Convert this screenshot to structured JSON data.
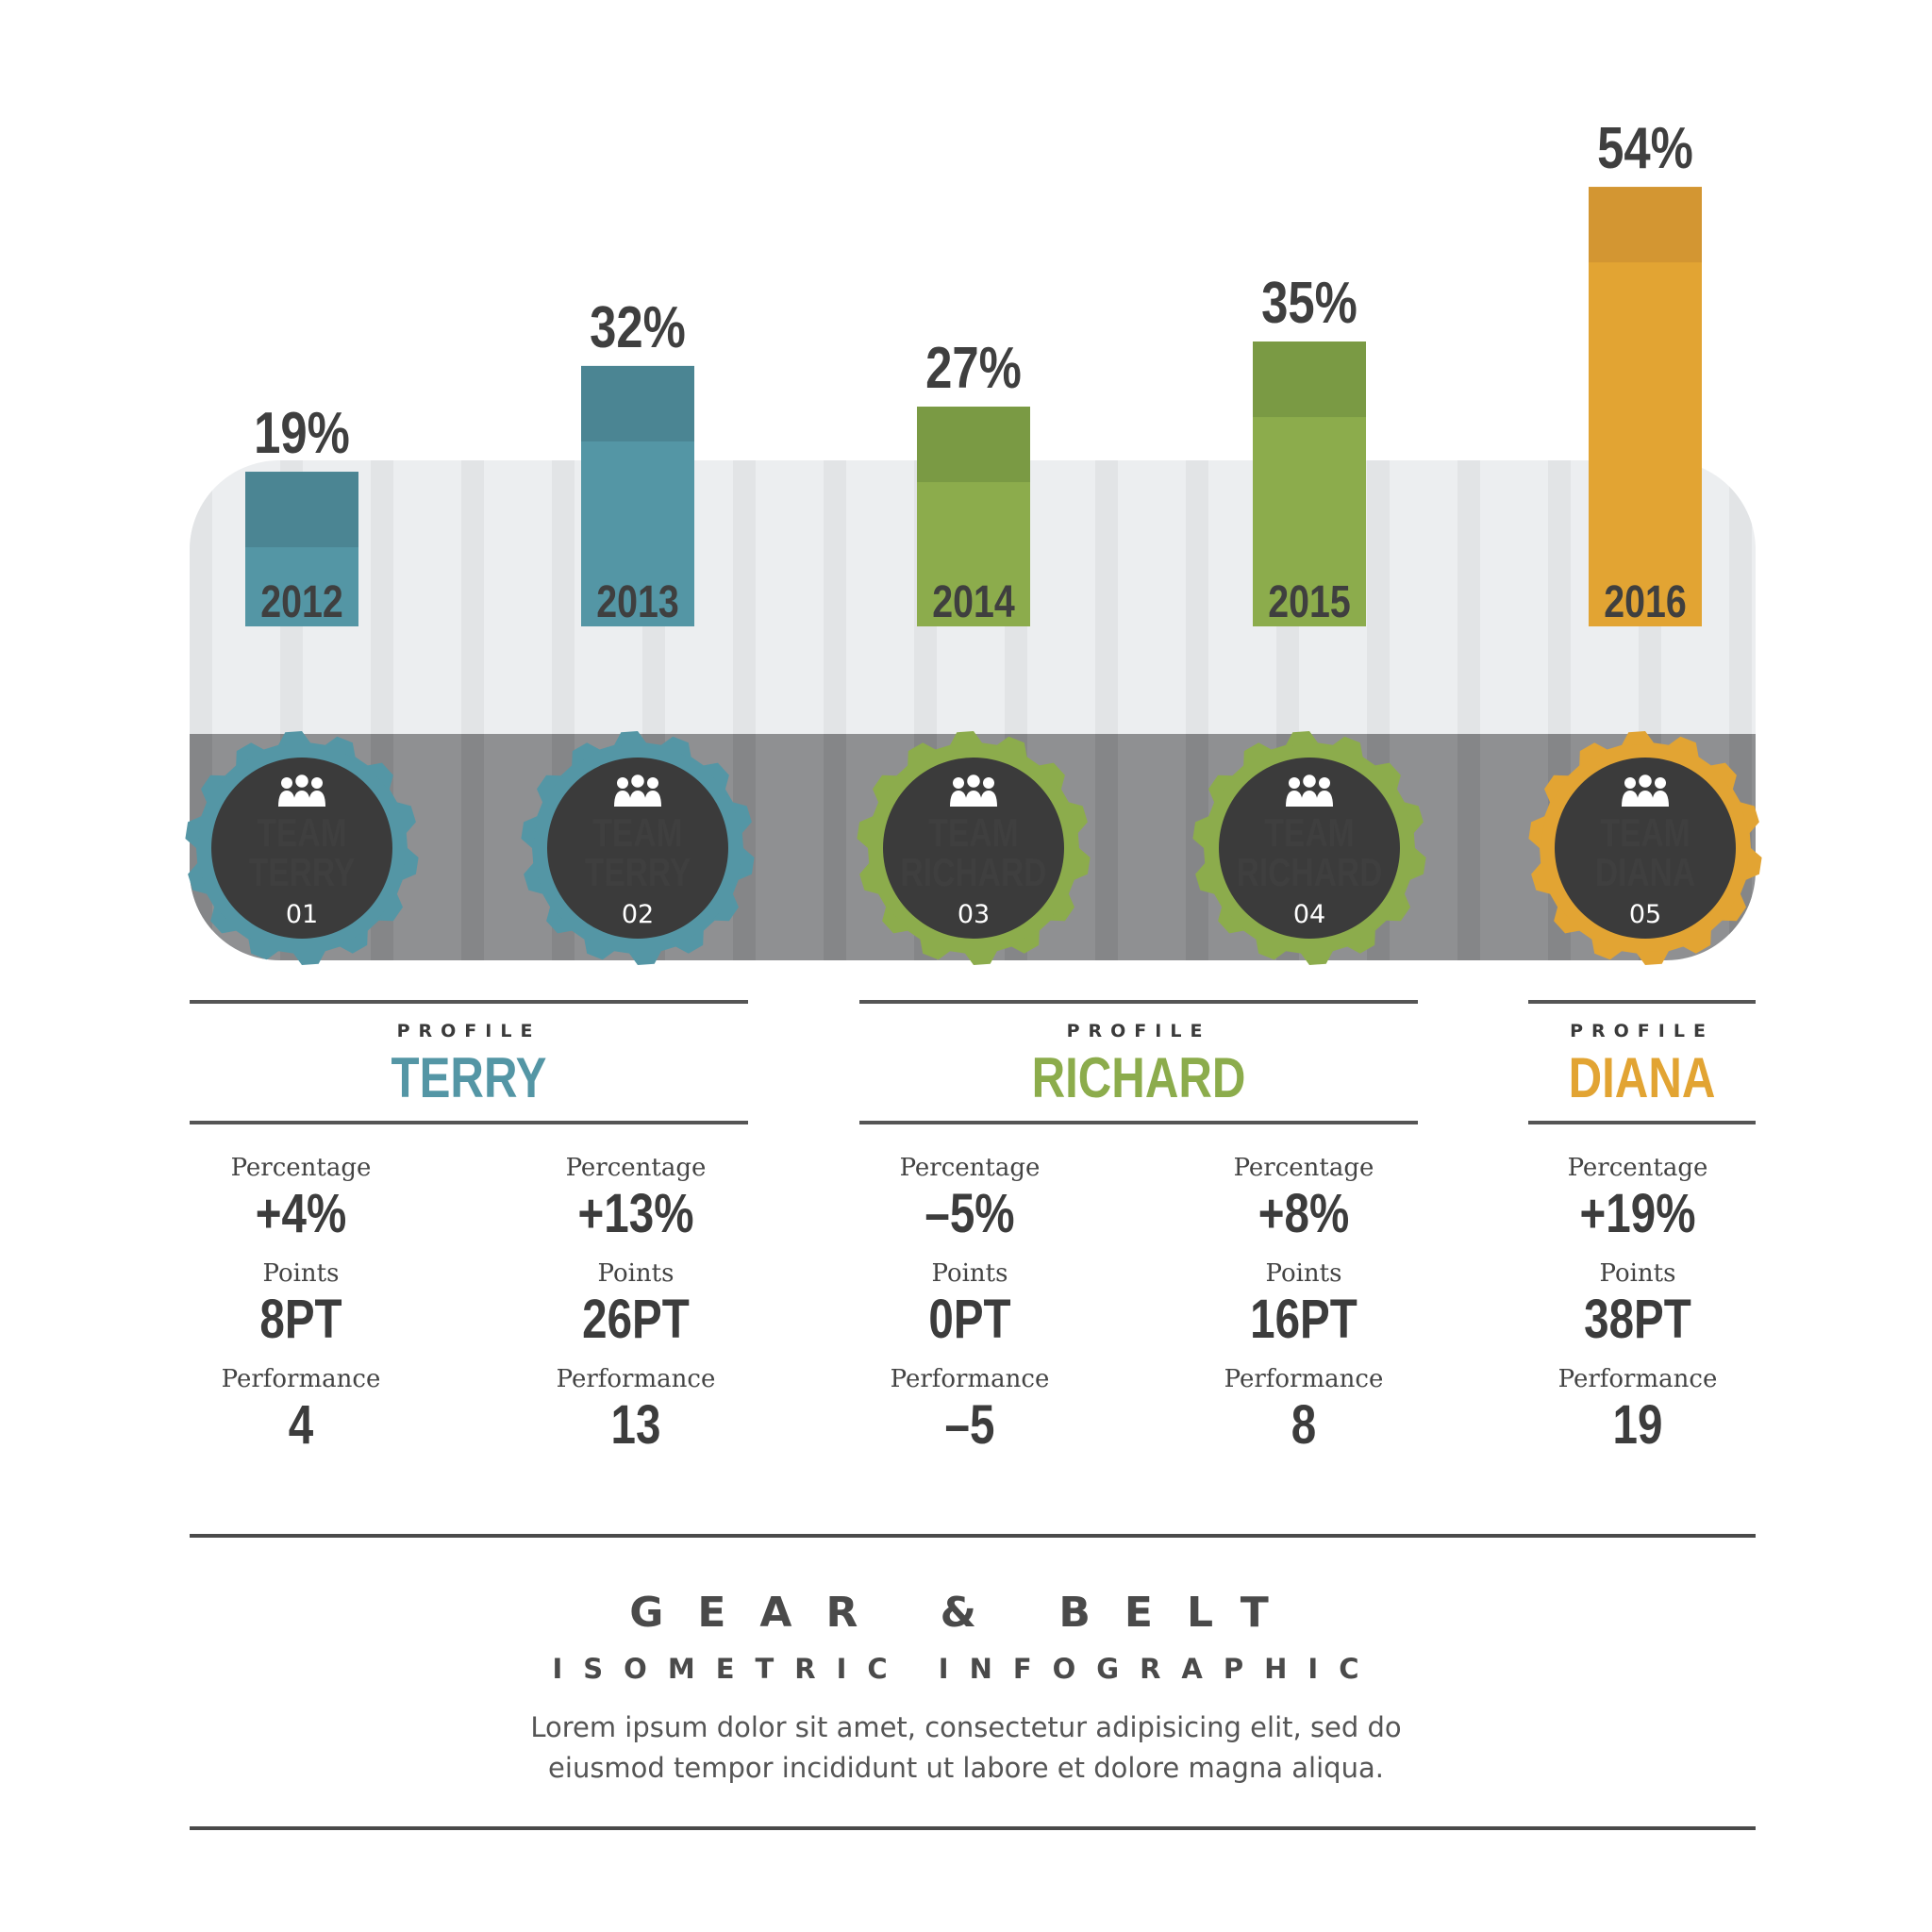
{
  "colors": {
    "teal": "#5496a5",
    "teal_dark": "#4b8593",
    "green": "#8cac4c",
    "green_dark": "#7a9a44",
    "orange": "#e2a433",
    "orange_dark": "#d39632",
    "hub": "#3b3b3b",
    "belt_light": "#eceef0",
    "belt_dark": "#8f9092",
    "value_text": "#3f3f3f"
  },
  "chart_data": {
    "type": "bar",
    "categories": [
      "2012",
      "2013",
      "2014",
      "2015",
      "2016"
    ],
    "values": [
      19,
      32,
      27,
      35,
      54
    ],
    "value_labels": [
      "19%",
      "32%",
      "27%",
      "35%",
      "54%"
    ],
    "bar_colors": [
      "teal",
      "teal",
      "green",
      "green",
      "orange"
    ],
    "title": "",
    "xlabel": "",
    "ylabel": "",
    "unit": "%"
  },
  "gears": [
    {
      "line1": "TEAM",
      "line2": "TERRY",
      "number": "01",
      "color": "teal",
      "icon": "team-people-icon"
    },
    {
      "line1": "TEAM",
      "line2": "TERRY",
      "number": "02",
      "color": "teal",
      "icon": "team-people-icon"
    },
    {
      "line1": "TEAM",
      "line2": "RICHARD",
      "number": "03",
      "color": "green",
      "icon": "team-people-icon"
    },
    {
      "line1": "TEAM",
      "line2": "RICHARD",
      "number": "04",
      "color": "green",
      "icon": "team-people-icon"
    },
    {
      "line1": "TEAM",
      "line2": "DIANA",
      "number": "05",
      "color": "orange",
      "icon": "team-people-icon"
    }
  ],
  "profiles": [
    {
      "kicker": "PROFILE",
      "name": "TERRY",
      "color": "teal"
    },
    {
      "kicker": "PROFILE",
      "name": "RICHARD",
      "color": "green"
    },
    {
      "kicker": "PROFILE",
      "name": "DIANA",
      "color": "orange"
    }
  ],
  "stats": [
    {
      "percentage_label": "Percentage",
      "percentage": "+4%",
      "points_label": "Points",
      "points": "8PT",
      "performance_label": "Performance",
      "performance": "4"
    },
    {
      "percentage_label": "Percentage",
      "percentage": "+13%",
      "points_label": "Points",
      "points": "26PT",
      "performance_label": "Performance",
      "performance": "13"
    },
    {
      "percentage_label": "Percentage",
      "percentage": "–5%",
      "points_label": "Points",
      "points": "0PT",
      "performance_label": "Performance",
      "performance": "–5"
    },
    {
      "percentage_label": "Percentage",
      "percentage": "+8%",
      "points_label": "Points",
      "points": "16PT",
      "performance_label": "Performance",
      "performance": "8"
    },
    {
      "percentage_label": "Percentage",
      "percentage": "+19%",
      "points_label": "Points",
      "points": "38PT",
      "performance_label": "Performance",
      "performance": "19"
    }
  ],
  "footer": {
    "title": "GEAR & BELT",
    "subtitle": "ISOMETRIC INFOGRAPHIC",
    "body_line1": "Lorem ipsum dolor sit amet, consectetur adipisicing elit, sed do",
    "body_line2": "eiusmod tempor incididunt ut labore et dolore magna aliqua."
  }
}
